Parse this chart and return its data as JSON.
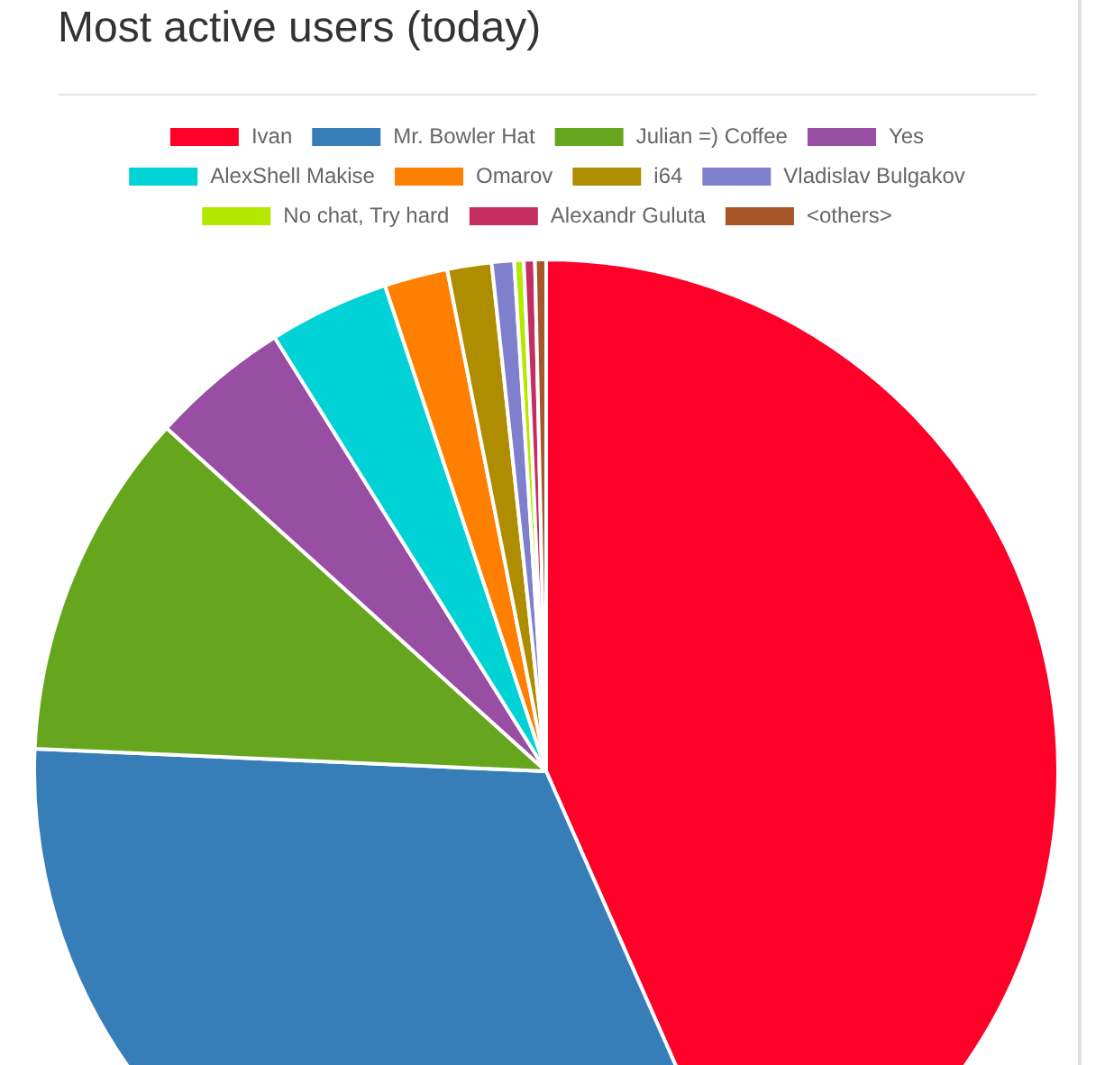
{
  "chart_data": {
    "type": "pie",
    "title": "Most active users (today)",
    "categories": [
      "Ivan",
      "Mr. Bowler Hat",
      "Julian =) Coffee",
      "Yes",
      "AlexShell Makise",
      "Omarov",
      "i64",
      "Vladislav Bulgakov",
      "No chat, Try hard",
      "Alexandr Guluta",
      "<others>"
    ],
    "values": [
      43.4,
      32.3,
      11.0,
      4.4,
      3.8,
      2.0,
      1.4,
      0.7,
      0.3,
      0.35,
      0.35
    ],
    "colors": [
      "#ff0029",
      "#377eb8",
      "#66a61e",
      "#984ea3",
      "#00d2d5",
      "#ff7f00",
      "#af8d00",
      "#7f80cd",
      "#b3e900",
      "#c42e60",
      "#a65628"
    ],
    "legend": "top"
  }
}
